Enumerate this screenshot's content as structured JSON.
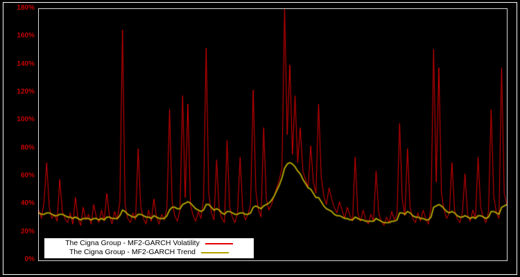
{
  "page": {
    "background_color": "#000000",
    "frame_color": "#ffffff"
  },
  "axis": {
    "tick_label_color": "#c40000",
    "tick_labels": [
      "0%",
      "20%",
      "40%",
      "60%",
      "80%",
      "100%",
      "120%",
      "140%",
      "160%",
      "180%"
    ]
  },
  "legend": {
    "items": [
      {
        "label": "The Cigna Group - MF2-GARCH Volatility",
        "color": "#e60000"
      },
      {
        "label": "The Cigna Group - MF2-GARCH Trend",
        "color": "#b2a300"
      }
    ]
  },
  "chart_data": {
    "type": "line",
    "title": "",
    "xlabel": "",
    "ylabel": "",
    "ylim": [
      0,
      180
    ],
    "y_ticks_percent": [
      0,
      20,
      40,
      60,
      80,
      100,
      120,
      140,
      160,
      180
    ],
    "grid": false,
    "plot_background": "#000000",
    "legend_position": "bottom-left",
    "series": [
      {
        "name": "The Cigna Group - MF2-GARCH Volatility",
        "color": "#e60000",
        "width": 1,
        "values": [
          36,
          30,
          42,
          70,
          38,
          30,
          33,
          28,
          58,
          35,
          30,
          27,
          34,
          26,
          45,
          30,
          25,
          38,
          29,
          33,
          26,
          40,
          31,
          27,
          36,
          28,
          48,
          32,
          26,
          35,
          29,
          42,
          165,
          40,
          30,
          27,
          34,
          29,
          80,
          38,
          30,
          26,
          36,
          28,
          44,
          31,
          26,
          33,
          29,
          38,
          108,
          42,
          32,
          28,
          36,
          118,
          45,
          112,
          40,
          32,
          28,
          35,
          30,
          44,
          152,
          48,
          34,
          29,
          72,
          36,
          30,
          27,
          86,
          38,
          31,
          27,
          34,
          74,
          36,
          29,
          33,
          40,
          122,
          50,
          36,
          31,
          95,
          44,
          36,
          40,
          46,
          52,
          58,
          66,
          180,
          90,
          140,
          76,
          118,
          70,
          95,
          64,
          58,
          52,
          82,
          56,
          48,
          112,
          60,
          46,
          40,
          52,
          44,
          38,
          34,
          42,
          36,
          30,
          38,
          32,
          28,
          74,
          34,
          28,
          36,
          30,
          26,
          33,
          28,
          64,
          34,
          28,
          25,
          31,
          27,
          35,
          29,
          33,
          98,
          44,
          32,
          80,
          38,
          30,
          27,
          34,
          28,
          36,
          30,
          26,
          38,
          151,
          56,
          138,
          48,
          36,
          30,
          34,
          70,
          36,
          30,
          27,
          34,
          62,
          33,
          28,
          36,
          30,
          74,
          38,
          31,
          27,
          35,
          108,
          46,
          34,
          30,
          138,
          48,
          40
        ]
      },
      {
        "name": "The Cigna Group - MF2-GARCH Trend",
        "color": "#b2a300",
        "width": 2,
        "values": [
          34,
          33,
          33,
          34,
          34,
          33,
          32,
          32,
          33,
          33,
          32,
          31,
          31,
          30,
          31,
          30,
          29,
          30,
          30,
          30,
          29,
          30,
          30,
          29,
          30,
          29,
          31,
          31,
          30,
          30,
          30,
          32,
          36,
          35,
          33,
          32,
          31,
          31,
          33,
          33,
          32,
          31,
          31,
          30,
          32,
          31,
          30,
          30,
          30,
          32,
          36,
          38,
          38,
          37,
          37,
          40,
          41,
          42,
          41,
          39,
          37,
          36,
          35,
          36,
          40,
          40,
          38,
          36,
          37,
          36,
          34,
          33,
          35,
          35,
          34,
          33,
          33,
          34,
          34,
          33,
          33,
          34,
          38,
          39,
          38,
          37,
          39,
          40,
          41,
          43,
          46,
          50,
          54,
          59,
          66,
          69,
          70,
          69,
          67,
          64,
          62,
          58,
          55,
          52,
          51,
          48,
          45,
          45,
          42,
          39,
          37,
          36,
          35,
          33,
          32,
          32,
          31,
          30,
          30,
          29,
          29,
          31,
          30,
          29,
          29,
          28,
          28,
          28,
          28,
          30,
          29,
          28,
          27,
          27,
          27,
          28,
          28,
          29,
          34,
          34,
          33,
          35,
          34,
          32,
          31,
          31,
          30,
          30,
          29,
          29,
          31,
          38,
          39,
          40,
          39,
          37,
          35,
          34,
          35,
          34,
          32,
          31,
          31,
          32,
          31,
          30,
          31,
          30,
          32,
          32,
          31,
          30,
          31,
          35,
          35,
          34,
          33,
          38,
          39,
          40
        ]
      }
    ]
  }
}
